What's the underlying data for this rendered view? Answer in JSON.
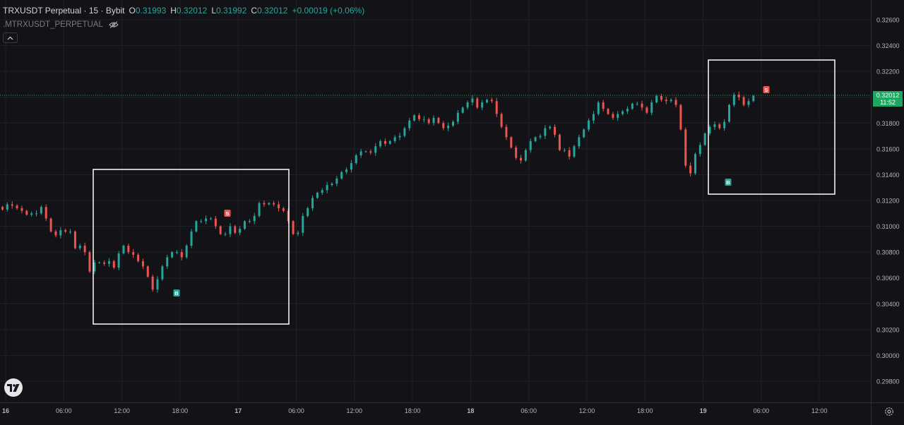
{
  "header": {
    "symbol": "TRXUSDT Perpetual · 15 · Bybit",
    "open_label": "O",
    "open": "0.31993",
    "high_label": "H",
    "high": "0.32012",
    "low_label": "L",
    "low": "0.31992",
    "close_label": "C",
    "close": "0.32012",
    "change": "+0.00019 (+0.06%)"
  },
  "indicator": {
    "name": ".MTRXUSDT_PERPETUAL",
    "icon": "eye-crossed-icon"
  },
  "collapse_icon": "chevron-up-icon",
  "price_axis": {
    "labels": [
      "0.32600",
      "0.32400",
      "0.32200",
      "0.32000",
      "0.31800",
      "0.31600",
      "0.31400",
      "0.31200",
      "0.31000",
      "0.30800",
      "0.30600",
      "0.30400",
      "0.30200",
      "0.30000",
      "0.29800"
    ]
  },
  "time_axis": {
    "labels": [
      "16",
      "06:00",
      "12:00",
      "18:00",
      "17",
      "06:00",
      "12:00",
      "18:00",
      "18",
      "06:00",
      "12:00",
      "18:00",
      "19",
      "06:00",
      "12:00"
    ]
  },
  "last_price": {
    "price": "0.32012",
    "countdown": "11:52"
  },
  "markers": [
    {
      "text": "S",
      "type": "sell"
    },
    {
      "text": "B",
      "type": "buy"
    },
    {
      "text": "S",
      "type": "sell"
    },
    {
      "text": "B",
      "type": "buy"
    }
  ],
  "colors": {
    "background": "#131317",
    "up": "#26a69a",
    "down": "#ef5350",
    "grid": "#1f2128",
    "box": "#ffffff",
    "last_price": "#1ea760"
  },
  "chart_data": {
    "type": "candlestick",
    "title": "",
    "interval": "15",
    "x_range": [
      "16",
      "19 12:00"
    ],
    "ylim": [
      0.297,
      0.3275
    ],
    "grid": true,
    "series": [
      {
        "values": [
          0.3113,
          0.3117,
          0.3116,
          0.3114,
          0.3112,
          0.3109,
          0.311,
          0.311,
          0.3115,
          0.3106,
          0.3096,
          0.3093,
          0.3097,
          0.3096,
          0.3096,
          0.3083,
          0.3085,
          0.308,
          0.3065,
          0.3072,
          0.3072,
          0.3071,
          0.3073,
          0.3068,
          0.3079,
          0.3085,
          0.308,
          0.3078,
          0.3073,
          0.3069,
          0.3061,
          0.3051,
          0.3059,
          0.3069,
          0.3076,
          0.308,
          0.308,
          0.3076,
          0.3085,
          0.3096,
          0.3104,
          0.3104,
          0.3106,
          0.3106,
          0.31,
          0.3094,
          0.3094,
          0.31,
          0.3095,
          0.3098,
          0.3104,
          0.3104,
          0.3108,
          0.3118,
          0.3117,
          0.3118,
          0.3117,
          0.3114,
          0.3112,
          0.3104,
          0.3094,
          0.3095,
          0.3108,
          0.3114,
          0.3122,
          0.3126,
          0.3128,
          0.3132,
          0.3133,
          0.3137,
          0.3142,
          0.3144,
          0.3149,
          0.3155,
          0.3158,
          0.3158,
          0.3157,
          0.3162,
          0.3166,
          0.3164,
          0.3166,
          0.3169,
          0.317,
          0.3176,
          0.3182,
          0.3186,
          0.3183,
          0.3183,
          0.318,
          0.3184,
          0.318,
          0.3176,
          0.3178,
          0.3181,
          0.3188,
          0.3192,
          0.3196,
          0.3199,
          0.3192,
          0.3196,
          0.3198,
          0.3197,
          0.3187,
          0.3177,
          0.3169,
          0.3161,
          0.3153,
          0.3151,
          0.3159,
          0.3166,
          0.3169,
          0.317,
          0.3176,
          0.3177,
          0.3171,
          0.3159,
          0.3159,
          0.3154,
          0.3162,
          0.3169,
          0.3175,
          0.3182,
          0.3187,
          0.3196,
          0.3191,
          0.3187,
          0.3184,
          0.3187,
          0.3189,
          0.3191,
          0.3195,
          0.3195,
          0.3192,
          0.3188,
          0.3196,
          0.3201,
          0.3198,
          0.3197,
          0.3198,
          0.3194,
          0.3175,
          0.3147,
          0.3141,
          0.3156,
          0.3163,
          0.3172,
          0.3177,
          0.3179,
          0.3176,
          0.3181,
          0.3194,
          0.3202,
          0.32,
          0.3194,
          0.3197,
          0.3201
        ]
      }
    ]
  }
}
